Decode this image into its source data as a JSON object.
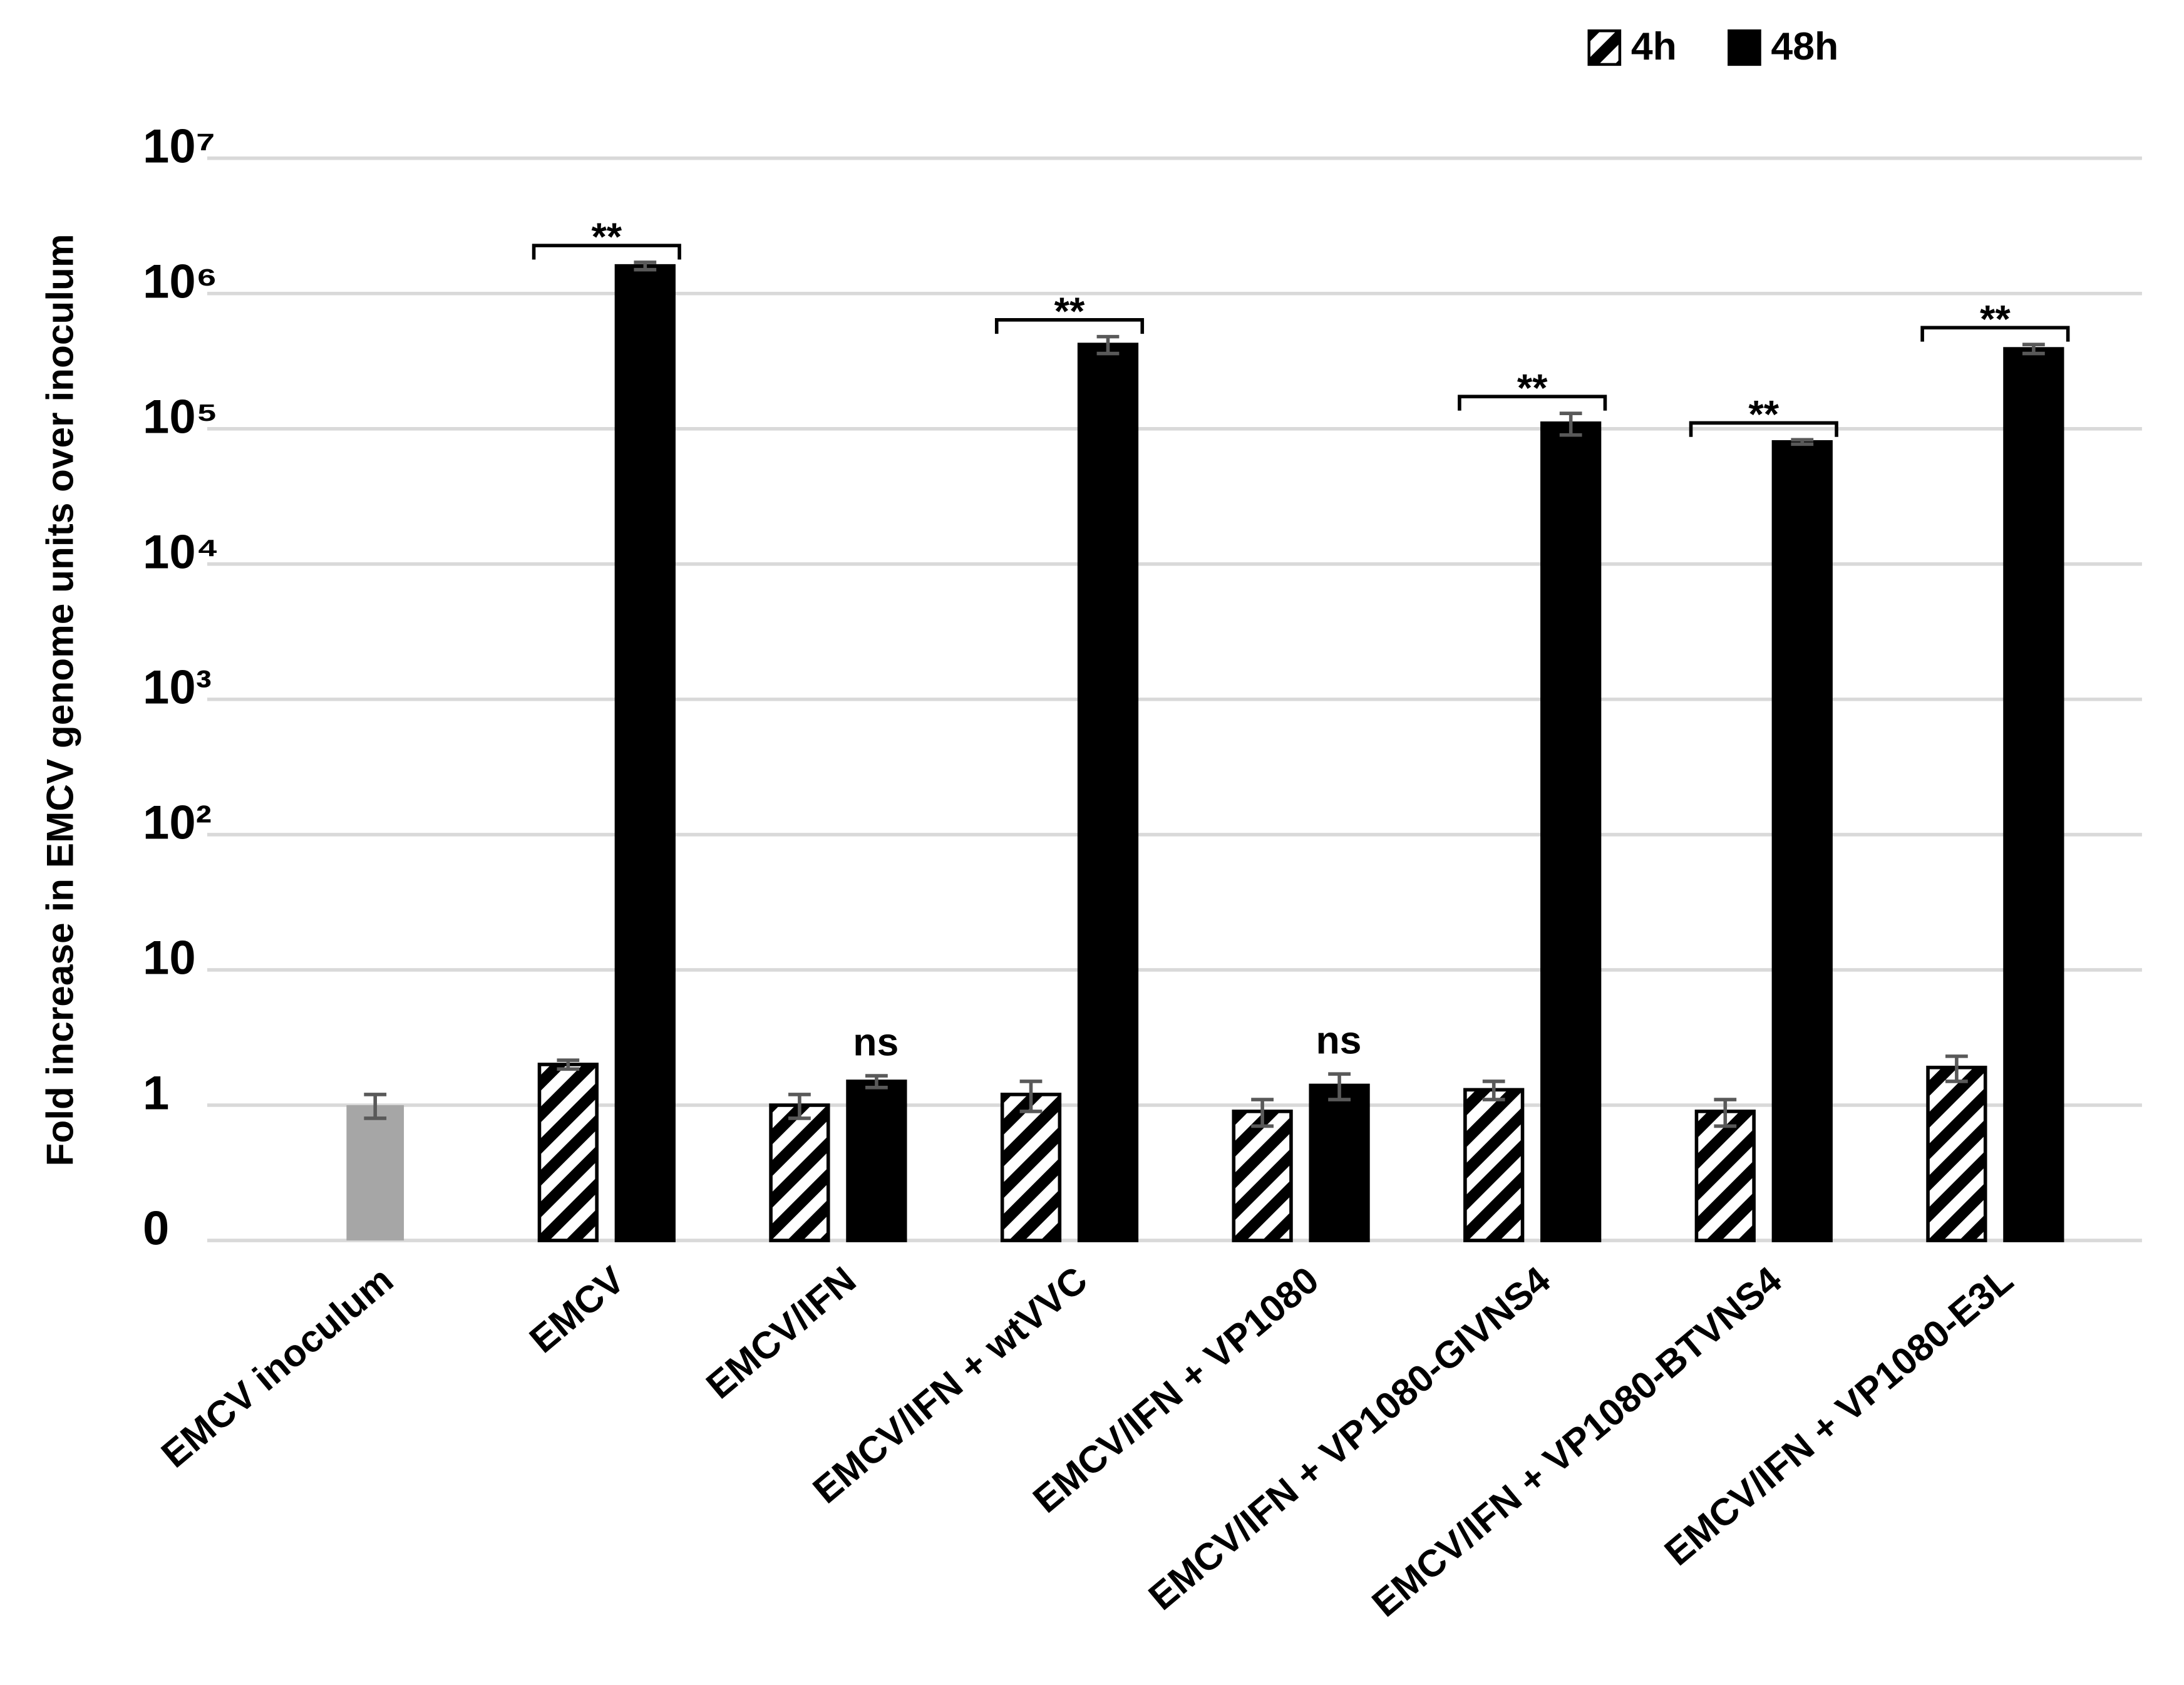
{
  "chart_data": {
    "type": "bar",
    "y_label": "Fold increase in EMCV genome units over inoculum",
    "log_scale": true,
    "grid": true,
    "legend": "top-right",
    "ylim": [
      0.1,
      10000000
    ],
    "yticks": [
      {
        "value": 0.1,
        "label": "0"
      },
      1,
      10,
      {
        "value": 100,
        "label": "10²"
      },
      {
        "value": 1000,
        "label": "10³"
      },
      {
        "value": 10000,
        "label": "10⁴"
      },
      {
        "value": 100000,
        "label": "10⁵"
      },
      {
        "value": 1000000,
        "label": "10⁶"
      },
      {
        "value": 10000000,
        "label": "10⁷"
      }
    ],
    "categories": [
      "EMCV inoculum",
      "EMCV",
      "EMCV/IFN",
      "EMCV/IFN + wtVVC",
      "EMCV/IFN + VP1080",
      "EMCV/IFN + VP1080-GIVNS4",
      "EMCV/IFN + VP1080-BTVNS4",
      "EMCV/IFN + VP1080-E3L"
    ],
    "inoculum": {
      "value": 1,
      "error": 0.2,
      "color": "#a6a6a6"
    },
    "series": [
      {
        "name": "4h",
        "color": "#000000",
        "pattern": "hatch",
        "values": [
          null,
          2,
          1,
          1.2,
          0.9,
          1.3,
          0.9,
          1.9
        ],
        "errors": [
          null,
          0.15,
          0.2,
          0.3,
          0.2,
          0.2,
          0.2,
          0.4
        ]
      },
      {
        "name": "48h",
        "color": "#000000",
        "pattern": "solid",
        "values": [
          null,
          1600000,
          1.5,
          420000,
          1.4,
          110000,
          80000,
          390000
        ],
        "errors": [
          null,
          100000,
          0.15,
          60000,
          0.3,
          20000,
          3000,
          30000
        ]
      }
    ],
    "annotations": [
      null,
      "**",
      "ns",
      "**",
      "ns",
      "**",
      "**",
      "**"
    ],
    "brackets": [
      false,
      true,
      false,
      true,
      false,
      true,
      true,
      true
    ],
    "error_color": "#595959"
  }
}
